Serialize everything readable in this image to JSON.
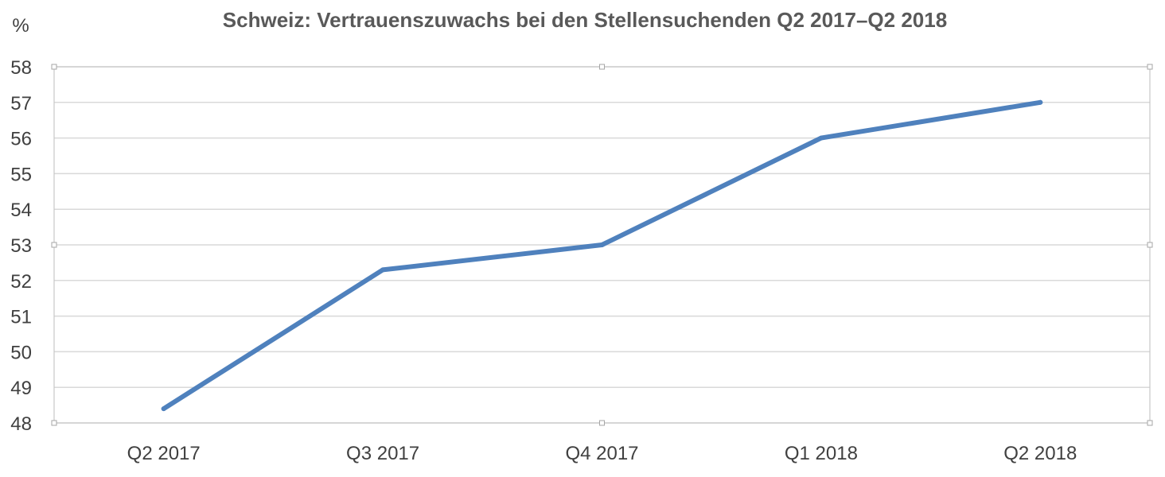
{
  "chart_data": {
    "type": "line",
    "title": "Schweiz: Vertrauenszuwachs bei den Stellensuchenden Q2 2017–Q2 2018",
    "unit_label": "%",
    "xlabel": "",
    "ylabel": "",
    "categories": [
      "Q2 2017",
      "Q3 2017",
      "Q4 2017",
      "Q1 2018",
      "Q2 2018"
    ],
    "series": [
      {
        "values": [
          48.4,
          52.3,
          53.0,
          56.0,
          57.0
        ],
        "color": "#4f81bd"
      }
    ],
    "ylim": [
      48,
      58
    ],
    "yticks": [
      "48",
      "49",
      "50",
      "51",
      "52",
      "53",
      "54",
      "55",
      "56",
      "57",
      "58"
    ],
    "grid": true,
    "legend": "none"
  }
}
